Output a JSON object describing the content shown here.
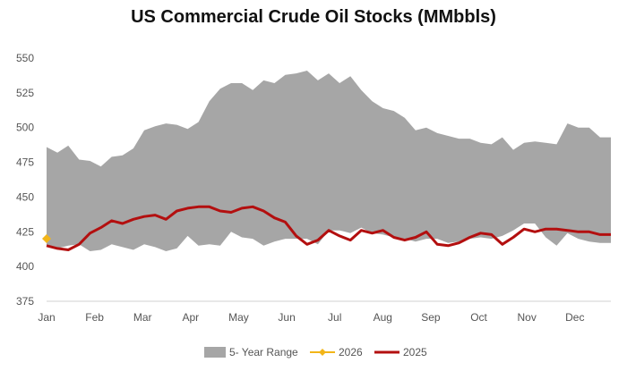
{
  "chart_data": {
    "type": "area",
    "title": "US Commercial Crude Oil Stocks (MMbbls)",
    "xlabel": "",
    "ylabel": "",
    "ylim": [
      375,
      550
    ],
    "y_ticks": [
      375,
      400,
      425,
      450,
      475,
      500,
      525,
      550
    ],
    "x_ticks": [
      "Jan",
      "Feb",
      "Mar",
      "Apr",
      "May",
      "Jun",
      "Jul",
      "Aug",
      "Sep",
      "Oct",
      "Nov",
      "Dec"
    ],
    "weeks": 53,
    "grid": false,
    "legend_position": "bottom",
    "series": [
      {
        "name": "5- Year Range",
        "kind": "range",
        "color": "#a6a6a6",
        "week": [
          1,
          2,
          3,
          4,
          5,
          6,
          7,
          8,
          9,
          10,
          11,
          12,
          13,
          14,
          15,
          16,
          17,
          18,
          19,
          20,
          21,
          22,
          23,
          24,
          25,
          26,
          27,
          28,
          29,
          30,
          31,
          32,
          33,
          34,
          35,
          36,
          37,
          38,
          39,
          40,
          41,
          42,
          43,
          44,
          45,
          46,
          47,
          48,
          49,
          50,
          51,
          52,
          53
        ],
        "upper": [
          486,
          482,
          487,
          477,
          476,
          472,
          479,
          480,
          485,
          498,
          501,
          503,
          502,
          499,
          504,
          519,
          528,
          532,
          532,
          527,
          534,
          532,
          538,
          539,
          541,
          534,
          539,
          532,
          537,
          527,
          519,
          514,
          512,
          507,
          498,
          500,
          496,
          494,
          492,
          492,
          489,
          488,
          493,
          484,
          489,
          490,
          489,
          488,
          503,
          500,
          500,
          493,
          493
        ],
        "lower": [
          414,
          413,
          415,
          416,
          411,
          412,
          416,
          414,
          412,
          416,
          414,
          411,
          413,
          422,
          415,
          416,
          415,
          425,
          421,
          420,
          415,
          418,
          420,
          420,
          420,
          416,
          426,
          426,
          424,
          428,
          424,
          423,
          421,
          420,
          418,
          420,
          420,
          417,
          418,
          420,
          421,
          420,
          422,
          426,
          431,
          431,
          421,
          415,
          424,
          420,
          418,
          417,
          417
        ]
      },
      {
        "name": "2026",
        "kind": "line",
        "color": "#f2b518",
        "x": [
          1
        ],
        "values": [
          420
        ]
      },
      {
        "name": "2025",
        "kind": "line",
        "color": "#b30f0f",
        "x": [
          1,
          2,
          3,
          4,
          5,
          6,
          7,
          8,
          9,
          10,
          11,
          12,
          13,
          14,
          15,
          16,
          17,
          18,
          19,
          20,
          21,
          22,
          23,
          24,
          25,
          26,
          27,
          28,
          29,
          30,
          31,
          32,
          33,
          34,
          35,
          36,
          37,
          38,
          39,
          40,
          41,
          42,
          43,
          44,
          45,
          46,
          47,
          48,
          49,
          50,
          51,
          52,
          53
        ],
        "values": [
          415,
          413,
          412,
          416,
          424,
          428,
          433,
          431,
          434,
          436,
          437,
          434,
          440,
          442,
          443,
          443,
          440,
          439,
          442,
          443,
          440,
          435,
          432,
          422,
          416,
          419,
          426,
          422,
          419,
          426,
          424,
          426,
          421,
          419,
          421,
          425,
          416,
          415,
          417,
          421,
          424,
          423,
          416,
          421,
          427,
          425,
          427,
          427,
          426,
          425,
          425,
          423,
          423
        ]
      }
    ]
  }
}
